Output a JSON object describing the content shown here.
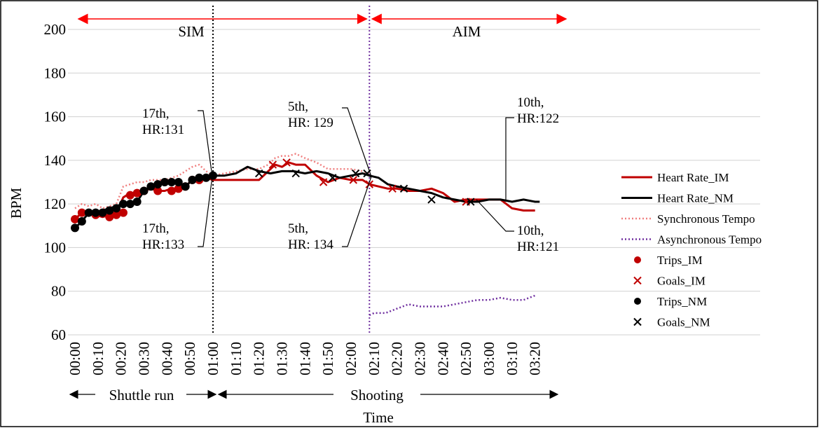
{
  "chart_data": {
    "type": "line",
    "title": "",
    "xlabel": "Time",
    "ylabel": "BPM",
    "ylim": [
      60,
      200
    ],
    "yticks": [
      60,
      80,
      100,
      120,
      140,
      160,
      180,
      200
    ],
    "xlim_seconds": [
      0,
      208
    ],
    "xticks": [
      "00:00",
      "00:10",
      "00:20",
      "00:30",
      "00:40",
      "00:50",
      "01:00",
      "01:10",
      "01:20",
      "01:30",
      "01:40",
      "01:50",
      "02:00",
      "02:10",
      "02:20",
      "02:30",
      "02:40",
      "02:50",
      "03:00",
      "03:10",
      "03:20"
    ],
    "grid": "horizontal",
    "legend_position": "right",
    "phase_labels": [
      "SIM",
      "AIM"
    ],
    "segment_labels": [
      "Shuttle run",
      "Shooting"
    ],
    "phase_boundaries": [
      "01:00",
      "02:08"
    ],
    "annotations": [
      {
        "text": [
          "17th,",
          "HR:131"
        ]
      },
      {
        "text": [
          "17th,",
          "HR:133"
        ]
      },
      {
        "text": [
          "5th,",
          "HR: 129"
        ]
      },
      {
        "text": [
          "5th,",
          "HR: 134"
        ]
      },
      {
        "text": [
          "10th,",
          "HR:122"
        ]
      },
      {
        "text": [
          "10th,",
          "HR:121"
        ]
      }
    ],
    "series": [
      {
        "name": "Heart Rate_IM",
        "color": "#c00000",
        "style": "solid",
        "x": [
          "00:00",
          "00:03",
          "00:06",
          "00:09",
          "00:12",
          "00:15",
          "00:18",
          "00:21",
          "00:24",
          "00:27",
          "00:30",
          "00:33",
          "00:36",
          "00:39",
          "00:42",
          "00:45",
          "00:48",
          "00:51",
          "00:54",
          "00:57",
          "01:00",
          "01:05",
          "01:10",
          "01:15",
          "01:20",
          "01:24",
          "01:27",
          "01:30",
          "01:33",
          "01:36",
          "01:40",
          "01:45",
          "01:50",
          "01:55",
          "02:00",
          "02:05",
          "02:08",
          "02:12",
          "02:16",
          "02:20",
          "02:25",
          "02:30",
          "02:35",
          "02:40",
          "02:45",
          "02:50",
          "02:55",
          "03:00",
          "03:05",
          "03:10",
          "03:15",
          "03:20"
        ],
        "y": [
          113,
          116,
          115,
          115,
          114,
          115,
          116,
          123,
          125,
          125,
          126,
          127,
          126,
          126,
          127,
          127,
          128,
          131,
          131,
          132,
          131,
          131,
          131,
          131,
          131,
          135,
          138,
          137,
          139,
          138,
          138,
          133,
          130,
          132,
          131,
          131,
          129,
          128,
          127,
          127,
          126,
          126,
          127,
          125,
          121,
          122,
          122,
          122,
          122,
          118,
          117,
          117
        ]
      },
      {
        "name": "Heart Rate_NM",
        "color": "#000000",
        "style": "solid",
        "x": [
          "00:00",
          "00:03",
          "00:06",
          "00:09",
          "00:12",
          "00:15",
          "00:18",
          "00:21",
          "00:24",
          "00:27",
          "00:30",
          "00:33",
          "00:36",
          "00:39",
          "00:42",
          "00:45",
          "00:48",
          "00:51",
          "00:54",
          "00:57",
          "01:00",
          "01:05",
          "01:10",
          "01:15",
          "01:20",
          "01:25",
          "01:30",
          "01:35",
          "01:40",
          "01:45",
          "01:50",
          "01:55",
          "02:00",
          "02:05",
          "02:08",
          "02:12",
          "02:16",
          "02:20",
          "02:25",
          "02:30",
          "02:35",
          "02:40",
          "02:45",
          "02:50",
          "02:55",
          "03:00",
          "03:05",
          "03:10",
          "03:15",
          "03:20",
          "03:22"
        ],
        "y": [
          109,
          112,
          116,
          116,
          117,
          118,
          119,
          120,
          120,
          121,
          126,
          128,
          129,
          130,
          130,
          129,
          128,
          131,
          132,
          132,
          133,
          133,
          134,
          137,
          135,
          134,
          135,
          135,
          134,
          135,
          134,
          132,
          133,
          134,
          133,
          132,
          129,
          128,
          127,
          126,
          125,
          123,
          122,
          121,
          121,
          122,
          122,
          121,
          122,
          121,
          121
        ]
      },
      {
        "name": "Synchronous Tempo",
        "color": "#f08080",
        "style": "dotted",
        "x": [
          "00:00",
          "00:03",
          "00:06",
          "00:09",
          "00:12",
          "00:15",
          "00:18",
          "00:21",
          "00:24",
          "00:27",
          "00:30",
          "00:33",
          "00:36",
          "00:39",
          "00:42",
          "00:45",
          "00:48",
          "00:51",
          "00:54",
          "00:57",
          "01:00",
          "01:05",
          "01:10",
          "01:15",
          "01:20",
          "01:24",
          "01:27",
          "01:30",
          "01:33",
          "01:36",
          "01:40",
          "01:45",
          "01:50",
          "01:55",
          "02:00",
          "02:05",
          "02:08"
        ],
        "y": [
          118,
          120,
          119,
          120,
          118,
          119,
          120,
          128,
          129,
          130,
          130,
          131,
          131,
          131,
          132,
          133,
          135,
          137,
          138,
          135,
          133,
          134,
          135,
          136,
          136,
          138,
          141,
          142,
          142,
          143,
          141,
          139,
          136,
          136,
          136,
          135,
          134
        ]
      },
      {
        "name": "Asynchronous Tempo",
        "color": "#7030a0",
        "style": "dotted",
        "x": [
          "02:08",
          "02:10",
          "02:15",
          "02:20",
          "02:25",
          "02:30",
          "02:35",
          "02:40",
          "02:45",
          "02:50",
          "02:55",
          "03:00",
          "03:05",
          "03:10",
          "03:15",
          "03:20"
        ],
        "y": [
          69,
          70,
          70,
          72,
          74,
          73,
          73,
          73,
          74,
          75,
          76,
          76,
          77,
          76,
          76,
          78
        ]
      },
      {
        "name": "Trips_IM",
        "color": "#c00000",
        "marker": "circle",
        "x": [
          "00:00",
          "00:03",
          "00:09",
          "00:15",
          "00:18",
          "00:21",
          "00:24",
          "00:27",
          "00:30",
          "00:36",
          "00:42",
          "00:45",
          "00:48",
          "00:51",
          "00:54"
        ],
        "y": [
          113,
          116,
          115,
          114,
          115,
          116,
          124,
          125,
          126,
          126,
          126,
          127,
          128,
          131,
          131
        ]
      },
      {
        "name": "Goals_IM",
        "color": "#c00000",
        "marker": "x",
        "x": [
          "01:26",
          "01:32",
          "01:48",
          "02:01",
          "02:08",
          "02:18",
          "02:50"
        ],
        "y": [
          138,
          139,
          130,
          131,
          129,
          127,
          121
        ]
      },
      {
        "name": "Trips_NM",
        "color": "#000000",
        "marker": "circle",
        "x": [
          "00:00",
          "00:03",
          "00:06",
          "00:09",
          "00:12",
          "00:15",
          "00:18",
          "00:21",
          "00:24",
          "00:27",
          "00:30",
          "00:33",
          "00:36",
          "00:39",
          "00:42",
          "00:45",
          "00:48",
          "00:51",
          "00:54",
          "00:57",
          "01:00"
        ],
        "y": [
          109,
          112,
          116,
          116,
          116,
          117,
          118,
          120,
          120,
          121,
          126,
          128,
          129,
          130,
          130,
          130,
          128,
          131,
          132,
          132,
          133
        ]
      },
      {
        "name": "Goals_NM",
        "color": "#000000",
        "marker": "x",
        "x": [
          "01:20",
          "01:36",
          "01:52",
          "02:02",
          "02:07",
          "02:23",
          "02:35",
          "02:52"
        ],
        "y": [
          134,
          134,
          132,
          134,
          134,
          127,
          122,
          121
        ]
      }
    ]
  }
}
